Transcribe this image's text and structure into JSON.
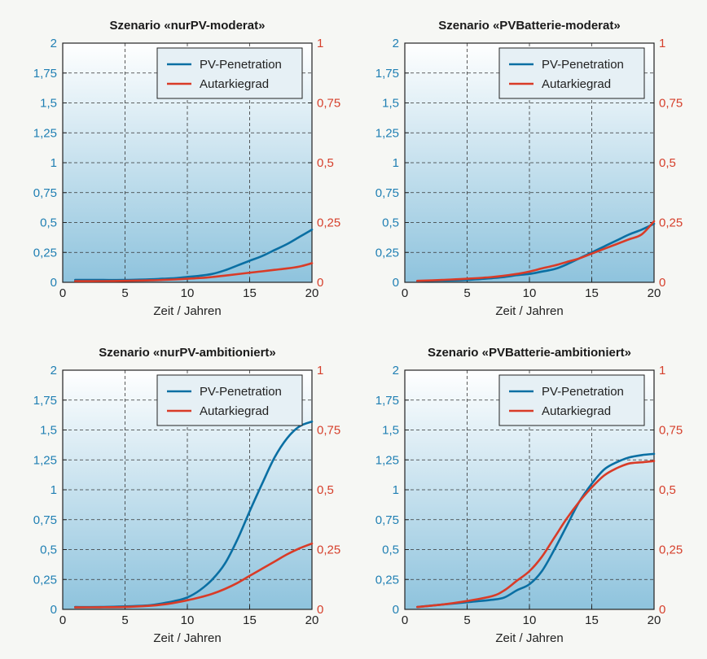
{
  "colors": {
    "pv": "#0a6fa3",
    "autarkie": "#d93b27",
    "left_axis": "#1f7fb3",
    "right_axis": "#d6402c",
    "bg_top": "#ffffff",
    "bg_bottom": "#8ec3dd"
  },
  "chart_data": [
    {
      "type": "line",
      "title": "Szenario «nurPV-moderat»",
      "xlabel": "Zeit / Jahren",
      "xlim": [
        0,
        20
      ],
      "xticks": [
        "0",
        "5",
        "10",
        "15",
        "20"
      ],
      "ylim_left": [
        0,
        2
      ],
      "yticks_left": [
        "0",
        "0,25",
        "0,5",
        "0,75",
        "1",
        "1,25",
        "1,5",
        "1,75",
        "2"
      ],
      "ylim_right": [
        0,
        1
      ],
      "yticks_right": [
        "0",
        "0,25",
        "0,5",
        "0,75",
        "1"
      ],
      "grid": true,
      "legend_position": "top-right",
      "series": [
        {
          "name": "PV-Penetration",
          "axis": "left",
          "x": [
            1,
            3,
            5,
            7,
            8,
            9,
            10,
            11,
            12,
            13,
            14,
            15,
            16,
            17,
            18,
            19,
            20
          ],
          "y": [
            0.02,
            0.02,
            0.02,
            0.025,
            0.03,
            0.035,
            0.045,
            0.055,
            0.07,
            0.1,
            0.14,
            0.18,
            0.22,
            0.27,
            0.32,
            0.38,
            0.44
          ]
        },
        {
          "name": "Autarkiegrad",
          "axis": "right",
          "x": [
            1,
            3,
            5,
            7,
            8,
            9,
            10,
            11,
            12,
            13,
            14,
            15,
            16,
            17,
            18,
            19,
            20
          ],
          "y": [
            0.005,
            0.005,
            0.006,
            0.008,
            0.01,
            0.012,
            0.015,
            0.018,
            0.022,
            0.028,
            0.034,
            0.04,
            0.046,
            0.052,
            0.058,
            0.066,
            0.08
          ]
        }
      ]
    },
    {
      "type": "line",
      "title": "Szenario «PVBatterie-moderat»",
      "xlabel": "Zeit / Jahren",
      "xlim": [
        0,
        20
      ],
      "xticks": [
        "0",
        "5",
        "10",
        "15",
        "20"
      ],
      "ylim_left": [
        0,
        2
      ],
      "yticks_left": [
        "0",
        "0,25",
        "0,5",
        "0,75",
        "1",
        "1,25",
        "1,5",
        "1,75",
        "2"
      ],
      "ylim_right": [
        0,
        1
      ],
      "yticks_right": [
        "0",
        "0,25",
        "0,5",
        "0,75",
        "1"
      ],
      "grid": true,
      "legend_position": "top-right",
      "series": [
        {
          "name": "PV-Penetration",
          "axis": "left",
          "x": [
            1,
            3,
            5,
            7,
            8,
            9,
            10,
            11,
            12,
            13,
            14,
            15,
            16,
            17,
            18,
            19,
            20
          ],
          "y": [
            0.01,
            0.015,
            0.02,
            0.035,
            0.045,
            0.06,
            0.07,
            0.09,
            0.11,
            0.15,
            0.2,
            0.25,
            0.3,
            0.35,
            0.4,
            0.44,
            0.49
          ]
        },
        {
          "name": "Autarkiegrad",
          "axis": "right",
          "x": [
            1,
            3,
            5,
            7,
            8,
            9,
            10,
            11,
            12,
            13,
            14,
            15,
            16,
            17,
            18,
            19,
            20
          ],
          "y": [
            0.006,
            0.01,
            0.015,
            0.022,
            0.028,
            0.035,
            0.045,
            0.058,
            0.07,
            0.085,
            0.1,
            0.12,
            0.14,
            0.16,
            0.18,
            0.2,
            0.255
          ]
        }
      ]
    },
    {
      "type": "line",
      "title": "Szenario «nurPV-ambitioniert»",
      "xlabel": "Zeit / Jahren",
      "xlim": [
        0,
        20
      ],
      "xticks": [
        "0",
        "5",
        "10",
        "15",
        "20"
      ],
      "ylim_left": [
        0,
        2
      ],
      "yticks_left": [
        "0",
        "0,25",
        "0,5",
        "0,75",
        "1",
        "1,25",
        "1,5",
        "1,75",
        "2"
      ],
      "ylim_right": [
        0,
        1
      ],
      "yticks_right": [
        "0",
        "0,25",
        "0,5",
        "0,75",
        "1"
      ],
      "grid": true,
      "legend_position": "top-right",
      "series": [
        {
          "name": "PV-Penetration",
          "axis": "left",
          "x": [
            1,
            3,
            5,
            7,
            8,
            9,
            10,
            11,
            12,
            13,
            14,
            15,
            16,
            17,
            18,
            19,
            20
          ],
          "y": [
            0.02,
            0.02,
            0.025,
            0.035,
            0.05,
            0.07,
            0.1,
            0.16,
            0.25,
            0.38,
            0.58,
            0.82,
            1.05,
            1.27,
            1.43,
            1.53,
            1.57
          ]
        },
        {
          "name": "Autarkiegrad",
          "axis": "right",
          "x": [
            1,
            3,
            5,
            7,
            8,
            9,
            10,
            11,
            12,
            13,
            14,
            15,
            16,
            17,
            18,
            19,
            20
          ],
          "y": [
            0.008,
            0.009,
            0.01,
            0.015,
            0.02,
            0.028,
            0.038,
            0.05,
            0.065,
            0.085,
            0.11,
            0.14,
            0.17,
            0.2,
            0.23,
            0.255,
            0.275
          ]
        }
      ]
    },
    {
      "type": "line",
      "title": "Szenario «PVBatterie-ambitioniert»",
      "xlabel": "Zeit / Jahren",
      "xlim": [
        0,
        20
      ],
      "xticks": [
        "0",
        "5",
        "10",
        "15",
        "20"
      ],
      "ylim_left": [
        0,
        2
      ],
      "yticks_left": [
        "0",
        "0,25",
        "0,5",
        "0,75",
        "1",
        "1,25",
        "1,5",
        "1,75",
        "2"
      ],
      "ylim_right": [
        0,
        1
      ],
      "yticks_right": [
        "0",
        "0,25",
        "0,5",
        "0,75",
        "1"
      ],
      "grid": true,
      "legend_position": "top-right",
      "series": [
        {
          "name": "PV-Penetration",
          "axis": "left",
          "x": [
            1,
            3,
            5,
            7,
            8,
            9,
            10,
            11,
            12,
            13,
            14,
            15,
            16,
            17,
            18,
            19,
            20
          ],
          "y": [
            0.02,
            0.04,
            0.06,
            0.08,
            0.1,
            0.16,
            0.21,
            0.32,
            0.5,
            0.7,
            0.9,
            1.05,
            1.17,
            1.23,
            1.27,
            1.29,
            1.3
          ]
        },
        {
          "name": "Autarkiegrad",
          "axis": "right",
          "x": [
            1,
            3,
            5,
            7,
            8,
            9,
            10,
            11,
            12,
            13,
            14,
            15,
            16,
            17,
            18,
            19,
            20
          ],
          "y": [
            0.01,
            0.02,
            0.035,
            0.055,
            0.08,
            0.12,
            0.16,
            0.22,
            0.3,
            0.38,
            0.45,
            0.51,
            0.56,
            0.59,
            0.61,
            0.615,
            0.62
          ]
        }
      ]
    }
  ]
}
